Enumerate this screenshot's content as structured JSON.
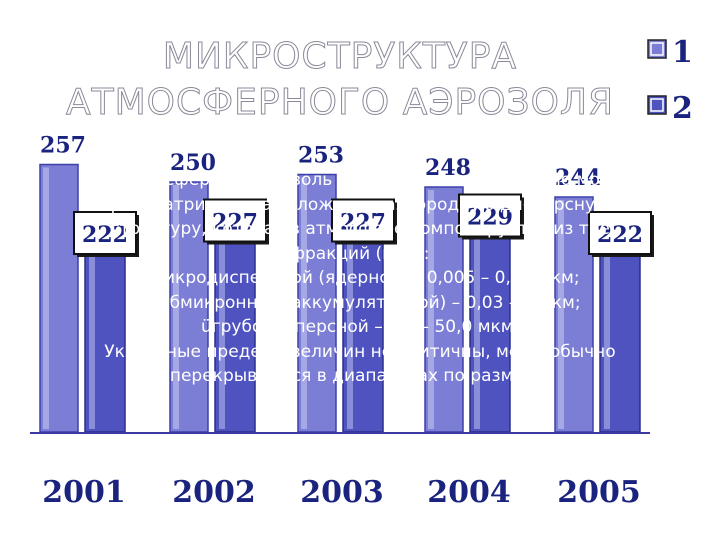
{
  "title": [
    "МИКРОСТРУКТУРА",
    "АТМОСФЕРНОГО АЭРОЗОЛЯ"
  ],
  "paragraph_lines": [
    "Атмосферный аэрозоль атмосферного воздуха по мо",
    "рассматривать как сложную разнородную дисперсную",
    "структуру, которая в атмосфере компонируется из тре",
    "фракций (мод):",
    "üмикродисперсной (ядерной) – 0,005 – 0,03 мкм;",
    "üсубмикронной (аккумулятивной) – 0,03 – 1 мкм;",
    "üгрубодисперсной – 1,0 – 50,0 мкм.",
    "Указанные пределы величин не критичны, моды обычно",
    "перекрываются в диапазонах по размеру."
  ],
  "chart_data": {
    "type": "bar",
    "categories": [
      "2001",
      "2002",
      "2003",
      "2004",
      "2005"
    ],
    "series": [
      {
        "name": "1",
        "values": [
          257,
          250,
          253,
          248,
          244
        ],
        "labels": [
          "257",
          "250",
          "253",
          "248",
          "244"
        ]
      },
      {
        "name": "2",
        "values": [
          222,
          227,
          227,
          229,
          222
        ],
        "labels": [
          "222",
          "227",
          "227",
          "229",
          "222"
        ]
      }
    ],
    "legend": {
      "position": "top-right",
      "entries": [
        "1",
        "2"
      ]
    },
    "colors": {
      "series1": "#7b7ed4",
      "series2": "#4f53c0",
      "axis": "#3a3aa0",
      "label": "#1a237e"
    }
  }
}
